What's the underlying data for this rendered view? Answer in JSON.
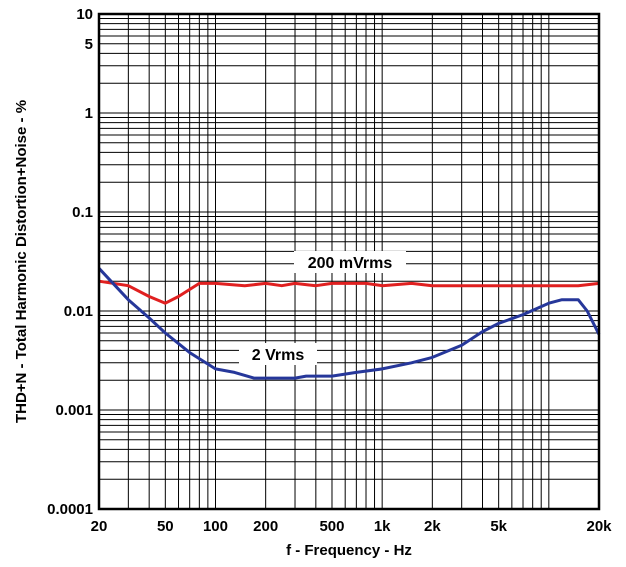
{
  "chart_data": {
    "type": "line",
    "xlabel": "f - Frequency - Hz",
    "ylabel": "THD+N - Total Harmonic Distortion+Noise - %",
    "x_scale": "log",
    "y_scale": "log",
    "xlim": [
      20,
      20000
    ],
    "ylim": [
      0.0001,
      10
    ],
    "grid": true,
    "x_ticks": [
      {
        "value": 20,
        "label": "20"
      },
      {
        "value": 50,
        "label": "50"
      },
      {
        "value": 100,
        "label": "100"
      },
      {
        "value": 200,
        "label": "200"
      },
      {
        "value": 500,
        "label": "500"
      },
      {
        "value": 1000,
        "label": "1k"
      },
      {
        "value": 2000,
        "label": "2k"
      },
      {
        "value": 5000,
        "label": "5k"
      },
      {
        "value": 20000,
        "label": "20k"
      }
    ],
    "y_ticks": [
      {
        "value": 10,
        "label": "10"
      },
      {
        "value": 5,
        "label": "5"
      },
      {
        "value": 1,
        "label": "1"
      },
      {
        "value": 0.1,
        "label": "0.1"
      },
      {
        "value": 0.01,
        "label": "0.01"
      },
      {
        "value": 0.001,
        "label": "0.001"
      },
      {
        "value": 0.0001,
        "label": "0.0001"
      }
    ],
    "series": [
      {
        "name": "200 mVrms",
        "color": "#e02020",
        "points": [
          [
            20,
            0.02
          ],
          [
            30,
            0.018
          ],
          [
            40,
            0.014
          ],
          [
            50,
            0.012
          ],
          [
            60,
            0.014
          ],
          [
            80,
            0.019
          ],
          [
            100,
            0.019
          ],
          [
            150,
            0.018
          ],
          [
            200,
            0.019
          ],
          [
            250,
            0.018
          ],
          [
            300,
            0.019
          ],
          [
            400,
            0.018
          ],
          [
            500,
            0.019
          ],
          [
            800,
            0.019
          ],
          [
            1000,
            0.018
          ],
          [
            1500,
            0.019
          ],
          [
            2000,
            0.018
          ],
          [
            5000,
            0.018
          ],
          [
            10000,
            0.018
          ],
          [
            15000,
            0.018
          ],
          [
            20000,
            0.019
          ]
        ]
      },
      {
        "name": "2 Vrms",
        "color": "#26379a",
        "points": [
          [
            20,
            0.027
          ],
          [
            25,
            0.018
          ],
          [
            30,
            0.013
          ],
          [
            40,
            0.0085
          ],
          [
            50,
            0.006
          ],
          [
            70,
            0.0038
          ],
          [
            100,
            0.0026
          ],
          [
            130,
            0.0024
          ],
          [
            170,
            0.0021
          ],
          [
            200,
            0.0021
          ],
          [
            300,
            0.0021
          ],
          [
            350,
            0.0022
          ],
          [
            500,
            0.0022
          ],
          [
            700,
            0.0024
          ],
          [
            1000,
            0.0026
          ],
          [
            1500,
            0.003
          ],
          [
            2000,
            0.0034
          ],
          [
            3000,
            0.0045
          ],
          [
            4000,
            0.0062
          ],
          [
            5000,
            0.0075
          ],
          [
            7000,
            0.0092
          ],
          [
            10000,
            0.012
          ],
          [
            12000,
            0.013
          ],
          [
            15000,
            0.013
          ],
          [
            17000,
            0.01
          ],
          [
            20000,
            0.0058
          ]
        ]
      }
    ],
    "annotations": [
      {
        "text": "200 mVrms",
        "series": 0
      },
      {
        "text": "2 Vrms",
        "series": 1
      }
    ]
  }
}
